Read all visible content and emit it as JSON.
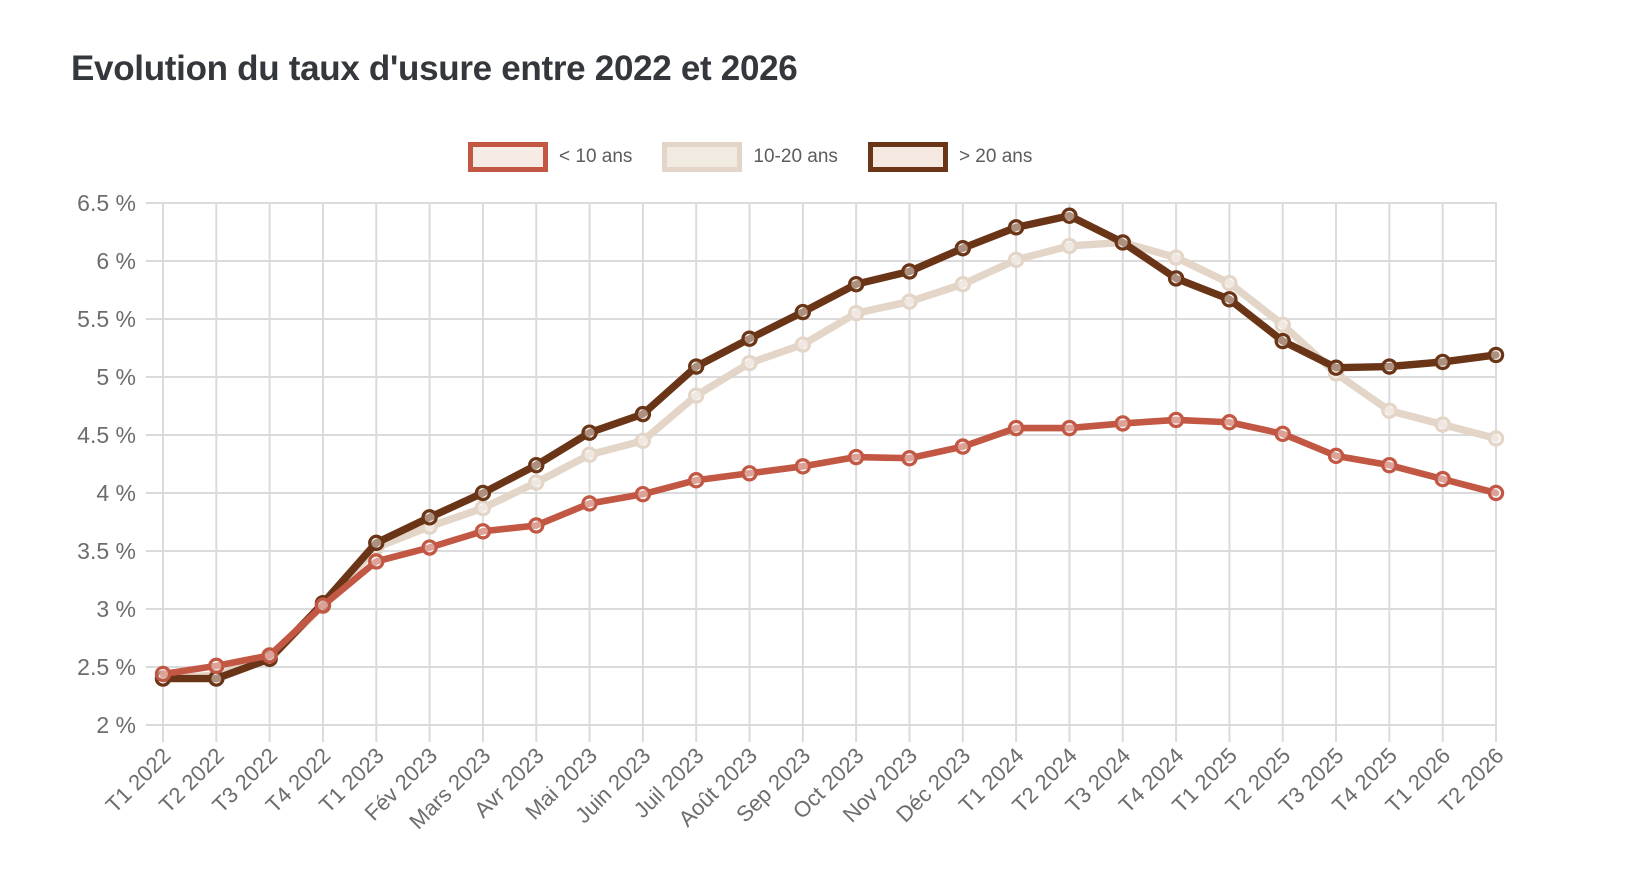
{
  "title": "Evolution du taux d'usure entre 2022 et 2026",
  "colors": {
    "background": "#ffffff",
    "title_text": "#34383c",
    "legend_text": "#5c5c5c",
    "axis_text": "#6d6d6d",
    "grid": "#dbdbdb"
  },
  "chart_data": {
    "type": "line",
    "title": "Evolution du taux d'usure entre 2022 et 2026",
    "ylabel": "",
    "xlabel": "",
    "ylim": [
      2,
      6.5
    ],
    "y_tick_step": 0.5,
    "y_tick_suffix": " %",
    "grid": true,
    "legend_position": "top",
    "marker_style": "open-circle",
    "categories": [
      "T1 2022",
      "T2 2022",
      "T3 2022",
      "T4 2022",
      "T1 2023",
      "Fév 2023",
      "Mars 2023",
      "Avr 2023",
      "Mai 2023",
      "Juin 2023",
      "Juil 2023",
      "Août 2023",
      "Sep 2023",
      "Oct 2023",
      "Nov 2023",
      "Déc 2023",
      "T1 2024",
      "T2 2024",
      "T3 2024",
      "T4 2024",
      "T1 2025",
      "T2 2025",
      "T3 2025",
      "T4 2025",
      "T1 2026",
      "T2 2026"
    ],
    "series": [
      {
        "name": "< 10 ans",
        "color": "#c25743",
        "swatch_fill": "#f7ebe5",
        "values": [
          2.44,
          2.51,
          2.6,
          3.03,
          3.41,
          3.53,
          3.67,
          3.72,
          3.91,
          3.99,
          4.11,
          4.17,
          4.23,
          4.31,
          4.3,
          4.4,
          4.56,
          4.56,
          4.6,
          4.63,
          4.61,
          4.51,
          4.32,
          4.24,
          4.12,
          4.0
        ]
      },
      {
        "name": "10-20 ans",
        "color": "#e3d5c7",
        "swatch_fill": "#f1eae1",
        "values": [
          2.4,
          2.43,
          2.57,
          3.03,
          3.53,
          3.71,
          3.87,
          4.09,
          4.33,
          4.45,
          4.84,
          5.12,
          5.28,
          5.55,
          5.65,
          5.8,
          6.01,
          6.13,
          6.16,
          6.03,
          5.81,
          5.45,
          5.03,
          4.71,
          4.59,
          4.47
        ]
      },
      {
        "name": "> 20 ans",
        "color": "#6a3517",
        "swatch_fill": "#f4e8e0",
        "values": [
          2.4,
          2.4,
          2.57,
          3.05,
          3.57,
          3.79,
          4.0,
          4.24,
          4.52,
          4.68,
          5.09,
          5.33,
          5.56,
          5.8,
          5.91,
          6.11,
          6.29,
          6.39,
          6.16,
          5.85,
          5.67,
          5.31,
          5.08,
          5.09,
          5.13,
          5.19
        ]
      }
    ]
  }
}
